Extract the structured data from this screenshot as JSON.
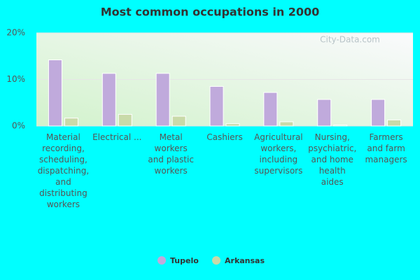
{
  "chart_data": {
    "type": "bar",
    "title": "Most common occupations in 2000",
    "watermark": "City-Data.com",
    "categories": [
      "Material\nrecording,\nscheduling,\ndispatching,\nand\ndistributing\nworkers",
      "Electrical ...",
      "Metal\nworkers\nand plastic\nworkers",
      "Cashiers",
      "Agricultural\nworkers,\nincluding\nsupervisors",
      "Nursing,\npsychiatric,\nand home\nhealth\naides",
      "Farmers\nand farm\nmanagers"
    ],
    "series": [
      {
        "name": "Tupelo",
        "color": "#c0aadc",
        "values": [
          14.2,
          11.3,
          11.3,
          8.5,
          7.2,
          5.7,
          5.7
        ]
      },
      {
        "name": "Arkansas",
        "color": "#c9daa9",
        "values": [
          1.7,
          2.5,
          2.1,
          0.5,
          0.9,
          0.2,
          1.3
        ]
      }
    ],
    "ylim": [
      0,
      20
    ],
    "yticks": [
      {
        "value": 0,
        "label": "0%"
      },
      {
        "value": 10,
        "label": "10%"
      },
      {
        "value": 20,
        "label": "20%"
      }
    ],
    "grid": true
  }
}
